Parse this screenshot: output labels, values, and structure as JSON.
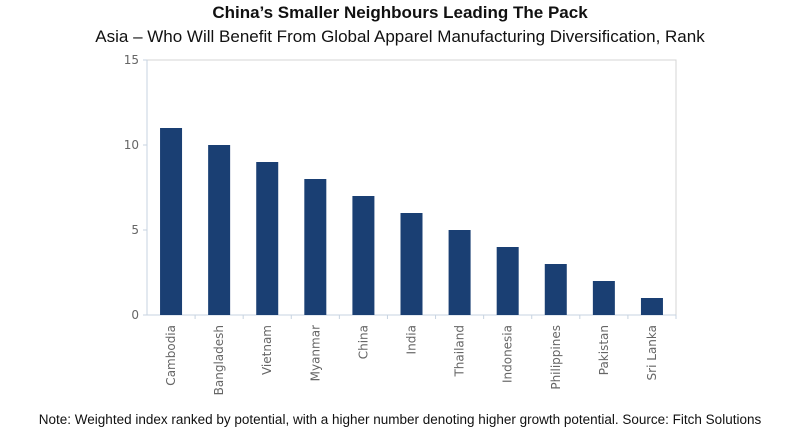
{
  "chart_data": {
    "type": "bar",
    "title": "China’s Smaller Neighbours Leading The Pack",
    "subtitle": "Asia – Who Will Benefit From Global Apparel Manufacturing Diversification, Rank",
    "categories": [
      "Cambodia",
      "Bangladesh",
      "Vietnam",
      "Myanmar",
      "China",
      "India",
      "Thailand",
      "Indonesia",
      "Philippines",
      "Pakistan",
      "Sri Lanka"
    ],
    "values": [
      11,
      10,
      9,
      8,
      7,
      6,
      5,
      4,
      3,
      2,
      1
    ],
    "xlabel": "",
    "ylabel": "",
    "ylim": [
      0,
      15
    ],
    "yticks": [
      0,
      5,
      10,
      15
    ],
    "grid": false,
    "legend": "none",
    "bar_color": "#1a3f73",
    "note": "Note: Weighted index ranked by potential, with a higher number denoting higher growth potential. Source: Fitch Solutions"
  }
}
